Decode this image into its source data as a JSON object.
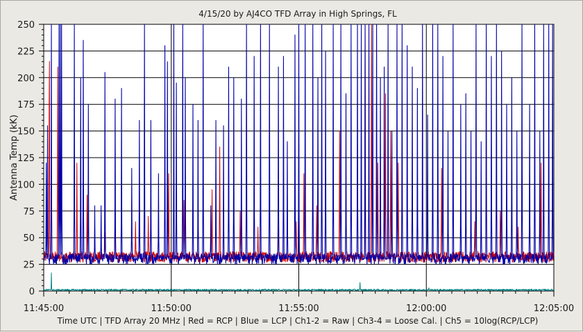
{
  "chart_data": {
    "type": "line",
    "title": "4/15/20  by  AJ4CO TFD Array  in  High Springs, FL",
    "ylabel": "Antenna Temp (kK)",
    "footer": "Time UTC | TFD Array 20 MHz | Red = RCP | Blue = LCP | Ch1-2 = Raw | Ch3-4 = Loose Cal. | Ch5 = 10log(RCP/LCP)",
    "ylim": [
      0,
      250
    ],
    "y_ticks": [
      "0",
      "25",
      "50",
      "75",
      "100",
      "125",
      "150",
      "175",
      "200",
      "225",
      "250"
    ],
    "x_ticks": [
      "11:45:00",
      "11:50:00",
      "11:55:00",
      "12:00:00",
      "12:05:00"
    ],
    "x_range_minutes": [
      0,
      20
    ],
    "grid": true,
    "colors": {
      "plot_background": "#ffffff",
      "grid": "#000000",
      "rcp": "#cc0000",
      "lcp": "#0000aa",
      "ratio": "#008080"
    },
    "series": [
      {
        "name": "RCP",
        "color": "#cc0000",
        "baseline": 32,
        "spikes": [
          [
            0.22,
            250
          ],
          [
            0.55,
            210
          ],
          [
            1.3,
            120
          ],
          [
            1.7,
            90
          ],
          [
            2.4,
            55
          ],
          [
            2.8,
            90
          ],
          [
            3.6,
            65
          ],
          [
            4.1,
            70
          ],
          [
            4.9,
            110
          ],
          [
            5.5,
            85
          ],
          [
            6.6,
            95
          ],
          [
            6.9,
            135
          ],
          [
            7.7,
            75
          ],
          [
            8.4,
            60
          ],
          [
            9.2,
            75
          ],
          [
            9.9,
            65
          ],
          [
            10.2,
            110
          ],
          [
            10.7,
            80
          ],
          [
            11.6,
            150
          ],
          [
            12.6,
            250
          ],
          [
            12.85,
            250
          ],
          [
            13.1,
            120
          ],
          [
            13.4,
            185
          ],
          [
            13.6,
            150
          ],
          [
            13.9,
            120
          ],
          [
            15.6,
            115
          ],
          [
            16.9,
            65
          ],
          [
            17.9,
            75
          ],
          [
            18.6,
            60
          ],
          [
            19.5,
            120
          ]
        ]
      },
      {
        "name": "LCP",
        "color": "#0000aa",
        "baseline": 30,
        "spikes": [
          [
            0.1,
            120
          ],
          [
            0.15,
            155
          ],
          [
            0.3,
            250
          ],
          [
            0.6,
            250
          ],
          [
            0.65,
            250
          ],
          [
            0.7,
            250
          ],
          [
            1.2,
            250
          ],
          [
            1.45,
            200
          ],
          [
            1.55,
            235
          ],
          [
            1.75,
            175
          ],
          [
            2.0,
            80
          ],
          [
            2.25,
            80
          ],
          [
            2.4,
            205
          ],
          [
            2.8,
            180
          ],
          [
            3.05,
            190
          ],
          [
            3.45,
            115
          ],
          [
            3.75,
            160
          ],
          [
            3.95,
            250
          ],
          [
            4.2,
            160
          ],
          [
            4.5,
            110
          ],
          [
            4.75,
            230
          ],
          [
            4.85,
            215
          ],
          [
            5.1,
            250
          ],
          [
            5.2,
            195
          ],
          [
            5.45,
            250
          ],
          [
            5.55,
            200
          ],
          [
            5.85,
            175
          ],
          [
            6.05,
            160
          ],
          [
            6.25,
            250
          ],
          [
            6.55,
            80
          ],
          [
            6.75,
            160
          ],
          [
            7.05,
            155
          ],
          [
            7.25,
            210
          ],
          [
            7.45,
            200
          ],
          [
            7.75,
            180
          ],
          [
            7.95,
            250
          ],
          [
            8.25,
            220
          ],
          [
            8.5,
            250
          ],
          [
            8.85,
            250
          ],
          [
            9.2,
            210
          ],
          [
            9.4,
            220
          ],
          [
            9.55,
            140
          ],
          [
            9.85,
            240
          ],
          [
            10.0,
            250
          ],
          [
            10.25,
            250
          ],
          [
            10.55,
            250
          ],
          [
            10.75,
            200
          ],
          [
            10.9,
            250
          ],
          [
            11.05,
            225
          ],
          [
            11.35,
            250
          ],
          [
            11.65,
            250
          ],
          [
            11.85,
            185
          ],
          [
            12.05,
            250
          ],
          [
            12.3,
            250
          ],
          [
            12.45,
            250
          ],
          [
            12.6,
            250
          ],
          [
            12.75,
            250
          ],
          [
            12.9,
            250
          ],
          [
            13.05,
            250
          ],
          [
            13.2,
            200
          ],
          [
            13.35,
            210
          ],
          [
            13.5,
            250
          ],
          [
            13.65,
            150
          ],
          [
            13.85,
            250
          ],
          [
            14.05,
            250
          ],
          [
            14.25,
            230
          ],
          [
            14.45,
            210
          ],
          [
            14.65,
            190
          ],
          [
            14.85,
            250
          ],
          [
            15.05,
            165
          ],
          [
            15.25,
            250
          ],
          [
            15.45,
            250
          ],
          [
            15.65,
            220
          ],
          [
            15.85,
            150
          ],
          [
            16.05,
            250
          ],
          [
            16.35,
            175
          ],
          [
            16.55,
            185
          ],
          [
            16.75,
            150
          ],
          [
            16.95,
            250
          ],
          [
            17.15,
            140
          ],
          [
            17.35,
            250
          ],
          [
            17.55,
            220
          ],
          [
            17.75,
            250
          ],
          [
            17.95,
            225
          ],
          [
            18.15,
            175
          ],
          [
            18.35,
            200
          ],
          [
            18.55,
            150
          ],
          [
            18.75,
            250
          ],
          [
            19.05,
            175
          ],
          [
            19.25,
            250
          ],
          [
            19.45,
            150
          ],
          [
            19.6,
            250
          ],
          [
            19.8,
            250
          ],
          [
            19.95,
            250
          ]
        ]
      },
      {
        "name": "Ratio",
        "color": "#008080",
        "baseline": 1,
        "spikes": [
          [
            0.3,
            17
          ],
          [
            12.4,
            8
          ],
          [
            15.1,
            3
          ]
        ]
      }
    ]
  }
}
